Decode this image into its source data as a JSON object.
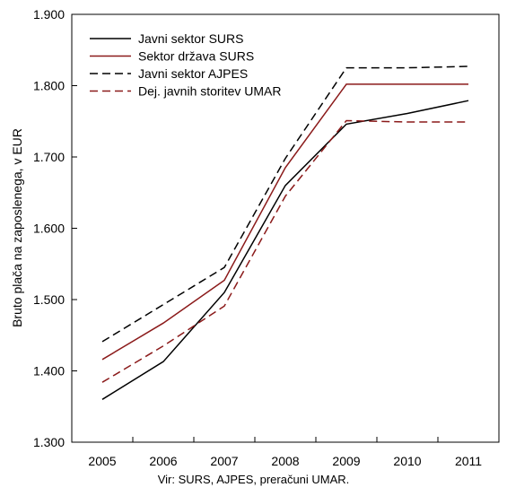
{
  "chart_data": {
    "type": "line",
    "x": [
      "2005",
      "2006",
      "2007",
      "2008",
      "2009",
      "2010",
      "2011"
    ],
    "ylabel": "Bruto plača na zaposlenega, v EUR",
    "xlabel": "",
    "ylim": [
      1300,
      1900
    ],
    "yticks": [
      1300,
      1400,
      1500,
      1600,
      1700,
      1800,
      1900
    ],
    "ytick_labels": [
      "1.300",
      "1.400",
      "1.500",
      "1.600",
      "1.700",
      "1.800",
      "1.900"
    ],
    "grid": false,
    "legend_position": "top-left",
    "series": [
      {
        "name": "Javni sektor SURS",
        "values": [
          1360,
          1413,
          1510,
          1660,
          1746,
          1761,
          1779
        ],
        "color": "#000000",
        "dash": "solid"
      },
      {
        "name": "Sektor država SURS",
        "values": [
          1416,
          1467,
          1527,
          1685,
          1802,
          1802,
          1802
        ],
        "color": "#8b1a1a",
        "dash": "solid"
      },
      {
        "name": "Javni sektor AJPES",
        "values": [
          1441,
          1493,
          1545,
          1698,
          1825,
          1825,
          1827
        ],
        "color": "#000000",
        "dash": "dashed"
      },
      {
        "name": "Dej. javnih storitev UMAR",
        "values": [
          1384,
          1435,
          1491,
          1645,
          1751,
          1749,
          1749
        ],
        "color": "#8b1a1a",
        "dash": "dashed"
      }
    ]
  },
  "caption": "Vir: SURS, AJPES, preračuni UMAR."
}
